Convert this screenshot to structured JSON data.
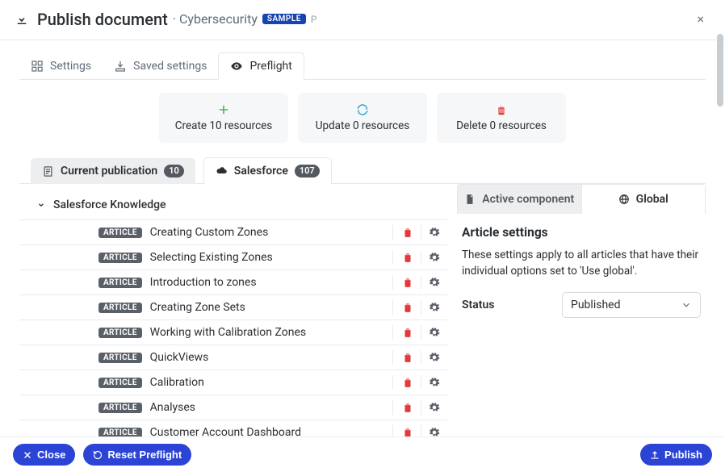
{
  "header": {
    "title": "Publish document",
    "subtitle": "Cybersecurity",
    "badge": "SAMPLE",
    "trailing_glyph": "P"
  },
  "top_tabs": {
    "settings": "Settings",
    "saved": "Saved settings",
    "preflight": "Preflight"
  },
  "summary": {
    "create": {
      "label": "Create 10 resources",
      "icon_color": "#2ea53b"
    },
    "update": {
      "label": "Update 0 resources",
      "icon_color": "#1e9bd6"
    },
    "delete": {
      "label": "Delete 0 resources",
      "icon_color": "#e03a3a"
    }
  },
  "sub_tabs": {
    "current": {
      "label": "Current publication",
      "count": "10"
    },
    "salesforce": {
      "label": "Salesforce",
      "count": "107"
    }
  },
  "tree": {
    "root_label": "Salesforce Knowledge",
    "type_pill": "ARTICLE",
    "items": [
      "Creating Custom Zones",
      "Selecting Existing Zones",
      "Introduction to zones",
      "Creating Zone Sets",
      "Working with Calibration Zones",
      "QuickViews",
      "Calibration",
      "Analyses",
      "Customer Account Dashboard"
    ]
  },
  "panel": {
    "tab_active_component": "Active component",
    "tab_global": "Global",
    "title": "Article settings",
    "description": "These settings apply to all articles that have their individual options set to 'Use global'.",
    "status_label": "Status",
    "status_value": "Published"
  },
  "footer": {
    "close": "Close",
    "reset": "Reset Preflight",
    "publish": "Publish"
  },
  "colors": {
    "primary_blue": "#2b44d6",
    "trash_red": "#e03a3a",
    "gear_gray": "#5a6068"
  }
}
